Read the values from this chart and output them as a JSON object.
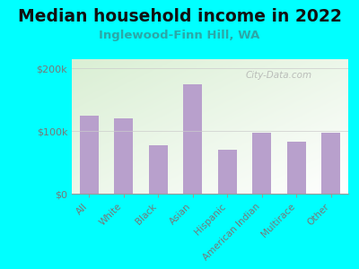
{
  "title": "Median household income in 2022",
  "subtitle": "Inglewood-Finn Hill, WA",
  "categories": [
    "All",
    "White",
    "Black",
    "Asian",
    "Hispanic",
    "American Indian",
    "Multirace",
    "Other"
  ],
  "values": [
    125000,
    120000,
    78000,
    175000,
    70000,
    97000,
    83000,
    97000
  ],
  "bar_color": "#b8a0cc",
  "background_color": "#00ffff",
  "title_color": "#111111",
  "subtitle_color": "#2aa8a8",
  "tick_color": "#777777",
  "ylabel_ticks": [
    "$0",
    "$100k",
    "$200k"
  ],
  "ylabel_vals": [
    0,
    100000,
    200000
  ],
  "ylim": [
    0,
    215000
  ],
  "watermark": "City-Data.com",
  "title_fontsize": 13.5,
  "subtitle_fontsize": 9.5,
  "tick_fontsize": 8,
  "xtick_fontsize": 7.5,
  "gradient_colors": [
    "#daefd4",
    "#f5fff5",
    "#ffffff"
  ],
  "grid_color": "#cccccc"
}
